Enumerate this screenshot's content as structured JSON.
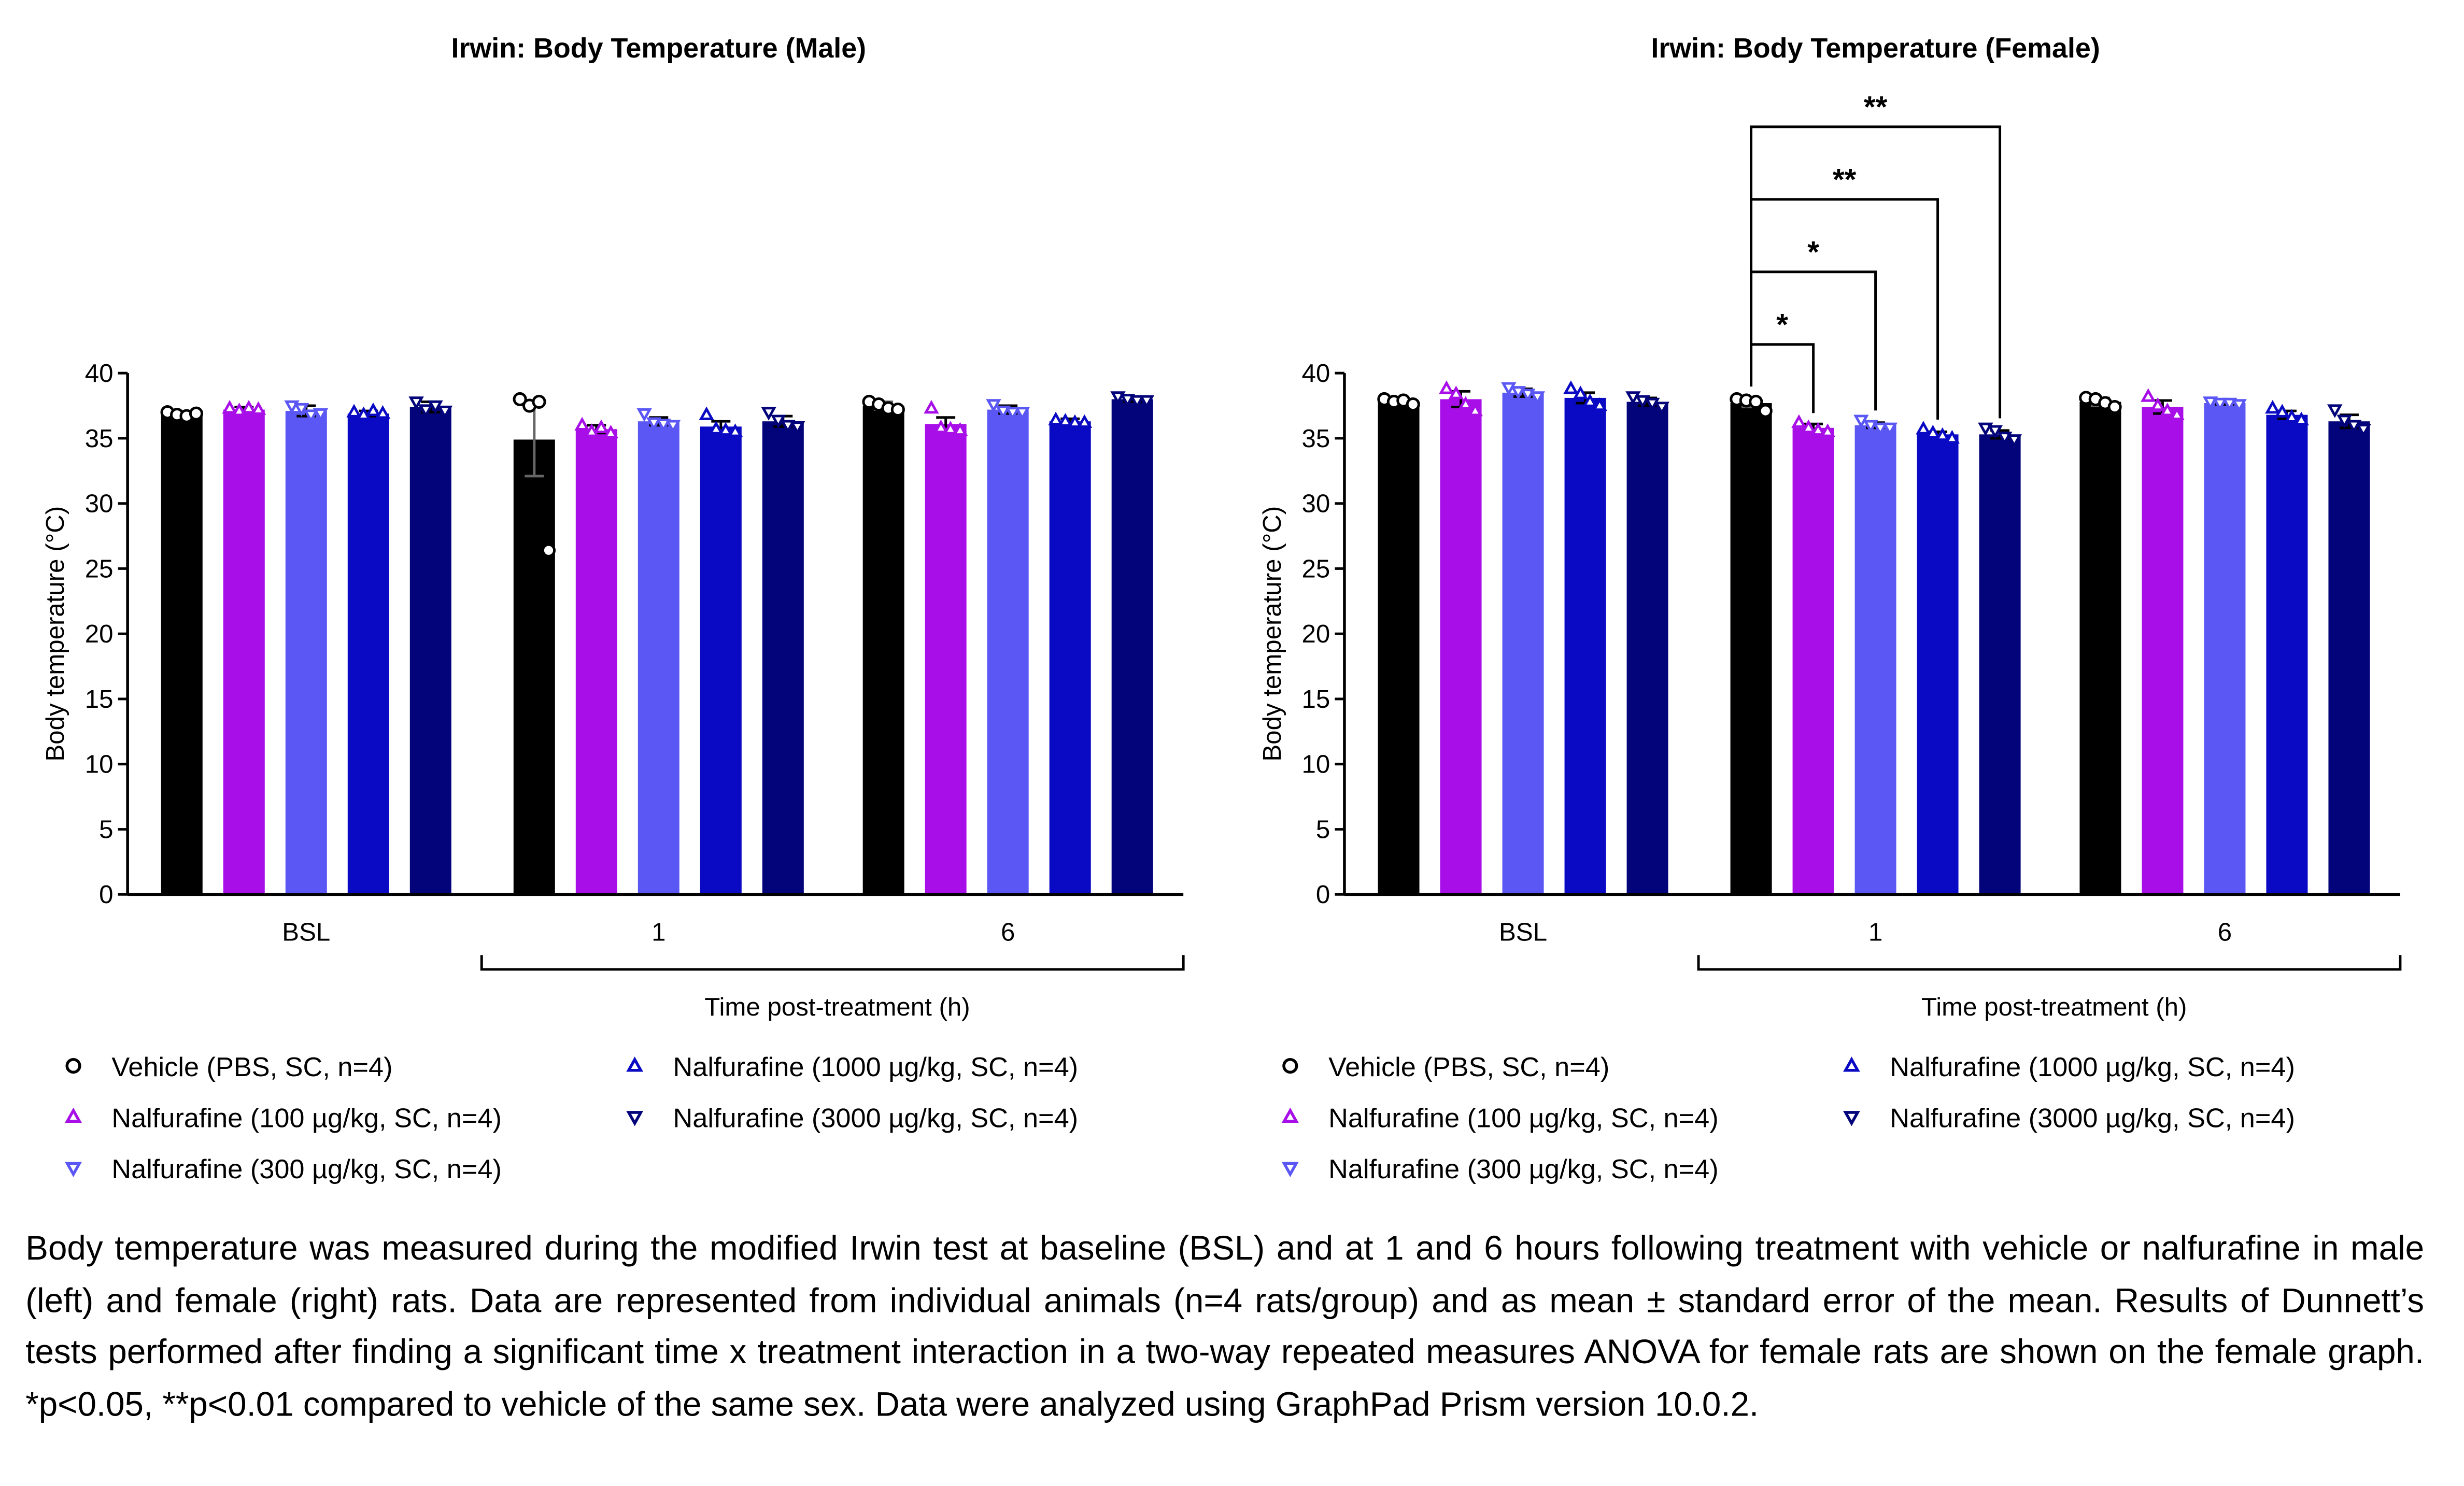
{
  "chart_data": [
    {
      "type": "bar",
      "title": "Irwin: Body Temperature (Male)",
      "y_label": "Body temperature (°C)",
      "x_label": "Time post-treatment (h)",
      "categories": [
        "BSL",
        "1",
        "6"
      ],
      "ylim": [
        0,
        40
      ],
      "yticks": [
        0,
        5,
        10,
        15,
        20,
        25,
        30,
        35,
        40
      ],
      "series": [
        {
          "name": "Vehicle (PBS, SC, n=4)",
          "color": "#000000",
          "marker": "circle",
          "values": [
            36.8,
            34.9,
            37.5
          ],
          "errors": [
            0.2,
            2.8,
            0.3
          ],
          "points": [
            [
              37.0,
              36.8,
              36.7,
              36.9
            ],
            [
              38.0,
              37.5,
              37.8,
              26.4
            ],
            [
              37.8,
              37.6,
              37.3,
              37.2
            ]
          ]
        },
        {
          "name": "Nalfurafine (100 µg/kg, SC, n=4)",
          "color": "#a80ee8",
          "marker": "triangle-up",
          "values": [
            37.2,
            35.7,
            36.1
          ],
          "errors": [
            0.2,
            0.3,
            0.5
          ],
          "points": [
            [
              37.3,
              37.1,
              37.3,
              37.2
            ],
            [
              36.0,
              35.5,
              35.8,
              35.4
            ],
            [
              37.3,
              35.8,
              35.7,
              35.6
            ]
          ]
        },
        {
          "name": "Nalfurafine (300 µg/kg, SC, n=4)",
          "color": "#5b57f5",
          "marker": "triangle-down",
          "values": [
            37.1,
            36.3,
            37.2
          ],
          "errors": [
            0.4,
            0.3,
            0.3
          ],
          "points": [
            [
              37.5,
              37.3,
              36.8,
              36.9
            ],
            [
              36.9,
              36.2,
              36.1,
              36.0
            ],
            [
              37.6,
              37.1,
              37.0,
              37.0
            ]
          ]
        },
        {
          "name": "Nalfurafine (1000 µg/kg, SC, n=4)",
          "color": "#0a0ac4",
          "marker": "triangle-up",
          "values": [
            36.9,
            35.9,
            36.3
          ],
          "errors": [
            0.2,
            0.4,
            0.2
          ],
          "points": [
            [
              37.0,
              36.8,
              37.1,
              36.9
            ],
            [
              36.8,
              35.7,
              35.6,
              35.5
            ],
            [
              36.4,
              36.3,
              36.2,
              36.2
            ]
          ]
        },
        {
          "name": "Nalfurafine (3000 µg/kg, SC, n=4)",
          "color": "#03037a",
          "marker": "triangle-down",
          "values": [
            37.4,
            36.3,
            38.0
          ],
          "errors": [
            0.4,
            0.4,
            0.2
          ],
          "points": [
            [
              37.8,
              37.2,
              37.5,
              37.1
            ],
            [
              37.0,
              36.4,
              36.0,
              35.9
            ],
            [
              38.2,
              38.0,
              37.9,
              37.9
            ]
          ]
        }
      ]
    },
    {
      "type": "bar",
      "title": "Irwin: Body Temperature (Female)",
      "y_label": "Body temperature (°C)",
      "x_label": "Time post-treatment (h)",
      "categories": [
        "BSL",
        "1",
        "6"
      ],
      "ylim": [
        0,
        40
      ],
      "yticks": [
        0,
        5,
        10,
        15,
        20,
        25,
        30,
        35,
        40
      ],
      "series": [
        {
          "name": "Vehicle (PBS, SC, n=4)",
          "color": "#000000",
          "marker": "circle",
          "values": [
            37.8,
            37.7,
            37.8
          ],
          "errors": [
            0.2,
            0.3,
            0.3
          ],
          "points": [
            [
              38.0,
              37.8,
              37.9,
              37.6
            ],
            [
              38.0,
              37.9,
              37.8,
              37.1
            ],
            [
              38.1,
              38.0,
              37.7,
              37.4
            ]
          ]
        },
        {
          "name": "Nalfurafine (100 µg/kg, SC, n=4)",
          "color": "#a80ee8",
          "marker": "triangle-up",
          "values": [
            38.0,
            35.8,
            37.4
          ],
          "errors": [
            0.6,
            0.3,
            0.5
          ],
          "points": [
            [
              38.8,
              38.4,
              37.6,
              37.1
            ],
            [
              36.2,
              35.8,
              35.6,
              35.5
            ],
            [
              38.2,
              37.5,
              37.1,
              36.8
            ]
          ],
          "significance": [
            null,
            "*",
            null
          ]
        },
        {
          "name": "Nalfurafine (300 µg/kg, SC, n=4)",
          "color": "#5b57f5",
          "marker": "triangle-down",
          "values": [
            38.5,
            36.0,
            37.7
          ],
          "errors": [
            0.3,
            0.2,
            0.1
          ],
          "points": [
            [
              38.9,
              38.6,
              38.4,
              38.2
            ],
            [
              36.4,
              36.0,
              35.8,
              35.8
            ],
            [
              37.8,
              37.7,
              37.7,
              37.6
            ]
          ],
          "significance": [
            null,
            "*",
            null
          ]
        },
        {
          "name": "Nalfurafine (1000 µg/kg, SC, n=4)",
          "color": "#0a0ac4",
          "marker": "triangle-up",
          "values": [
            38.1,
            35.3,
            36.8
          ],
          "errors": [
            0.4,
            0.2,
            0.3
          ],
          "points": [
            [
              38.8,
              38.4,
              37.8,
              37.5
            ],
            [
              35.7,
              35.4,
              35.2,
              35.0
            ],
            [
              37.3,
              37.0,
              36.6,
              36.4
            ]
          ],
          "significance": [
            null,
            "**",
            null
          ]
        },
        {
          "name": "Nalfurafine (3000 µg/kg, SC, n=4)",
          "color": "#03037a",
          "marker": "triangle-down",
          "values": [
            37.8,
            35.3,
            36.3
          ],
          "errors": [
            0.3,
            0.3,
            0.5
          ],
          "points": [
            [
              38.2,
              37.9,
              37.7,
              37.4
            ],
            [
              35.8,
              35.6,
              35.1,
              34.9
            ],
            [
              37.2,
              36.4,
              36.0,
              35.7
            ]
          ],
          "significance": [
            null,
            "**",
            null
          ]
        }
      ]
    }
  ],
  "caption": "Body temperature was measured during the modified Irwin test at baseline (BSL) and at 1 and 6 hours following treatment with vehicle or nalfurafine in male (left) and female (right) rats. Data are represented from individual animals (n=4 rats/group) and as mean ± standard error of the mean. Results of Dunnett’s tests performed after finding a significant time x treatment interaction in a two-way repeated measures ANOVA for female rats are shown on the female graph. *p<0.05, **p<0.01 compared to vehicle of the same sex. Data were analyzed using GraphPad Prism version 10.0.2."
}
